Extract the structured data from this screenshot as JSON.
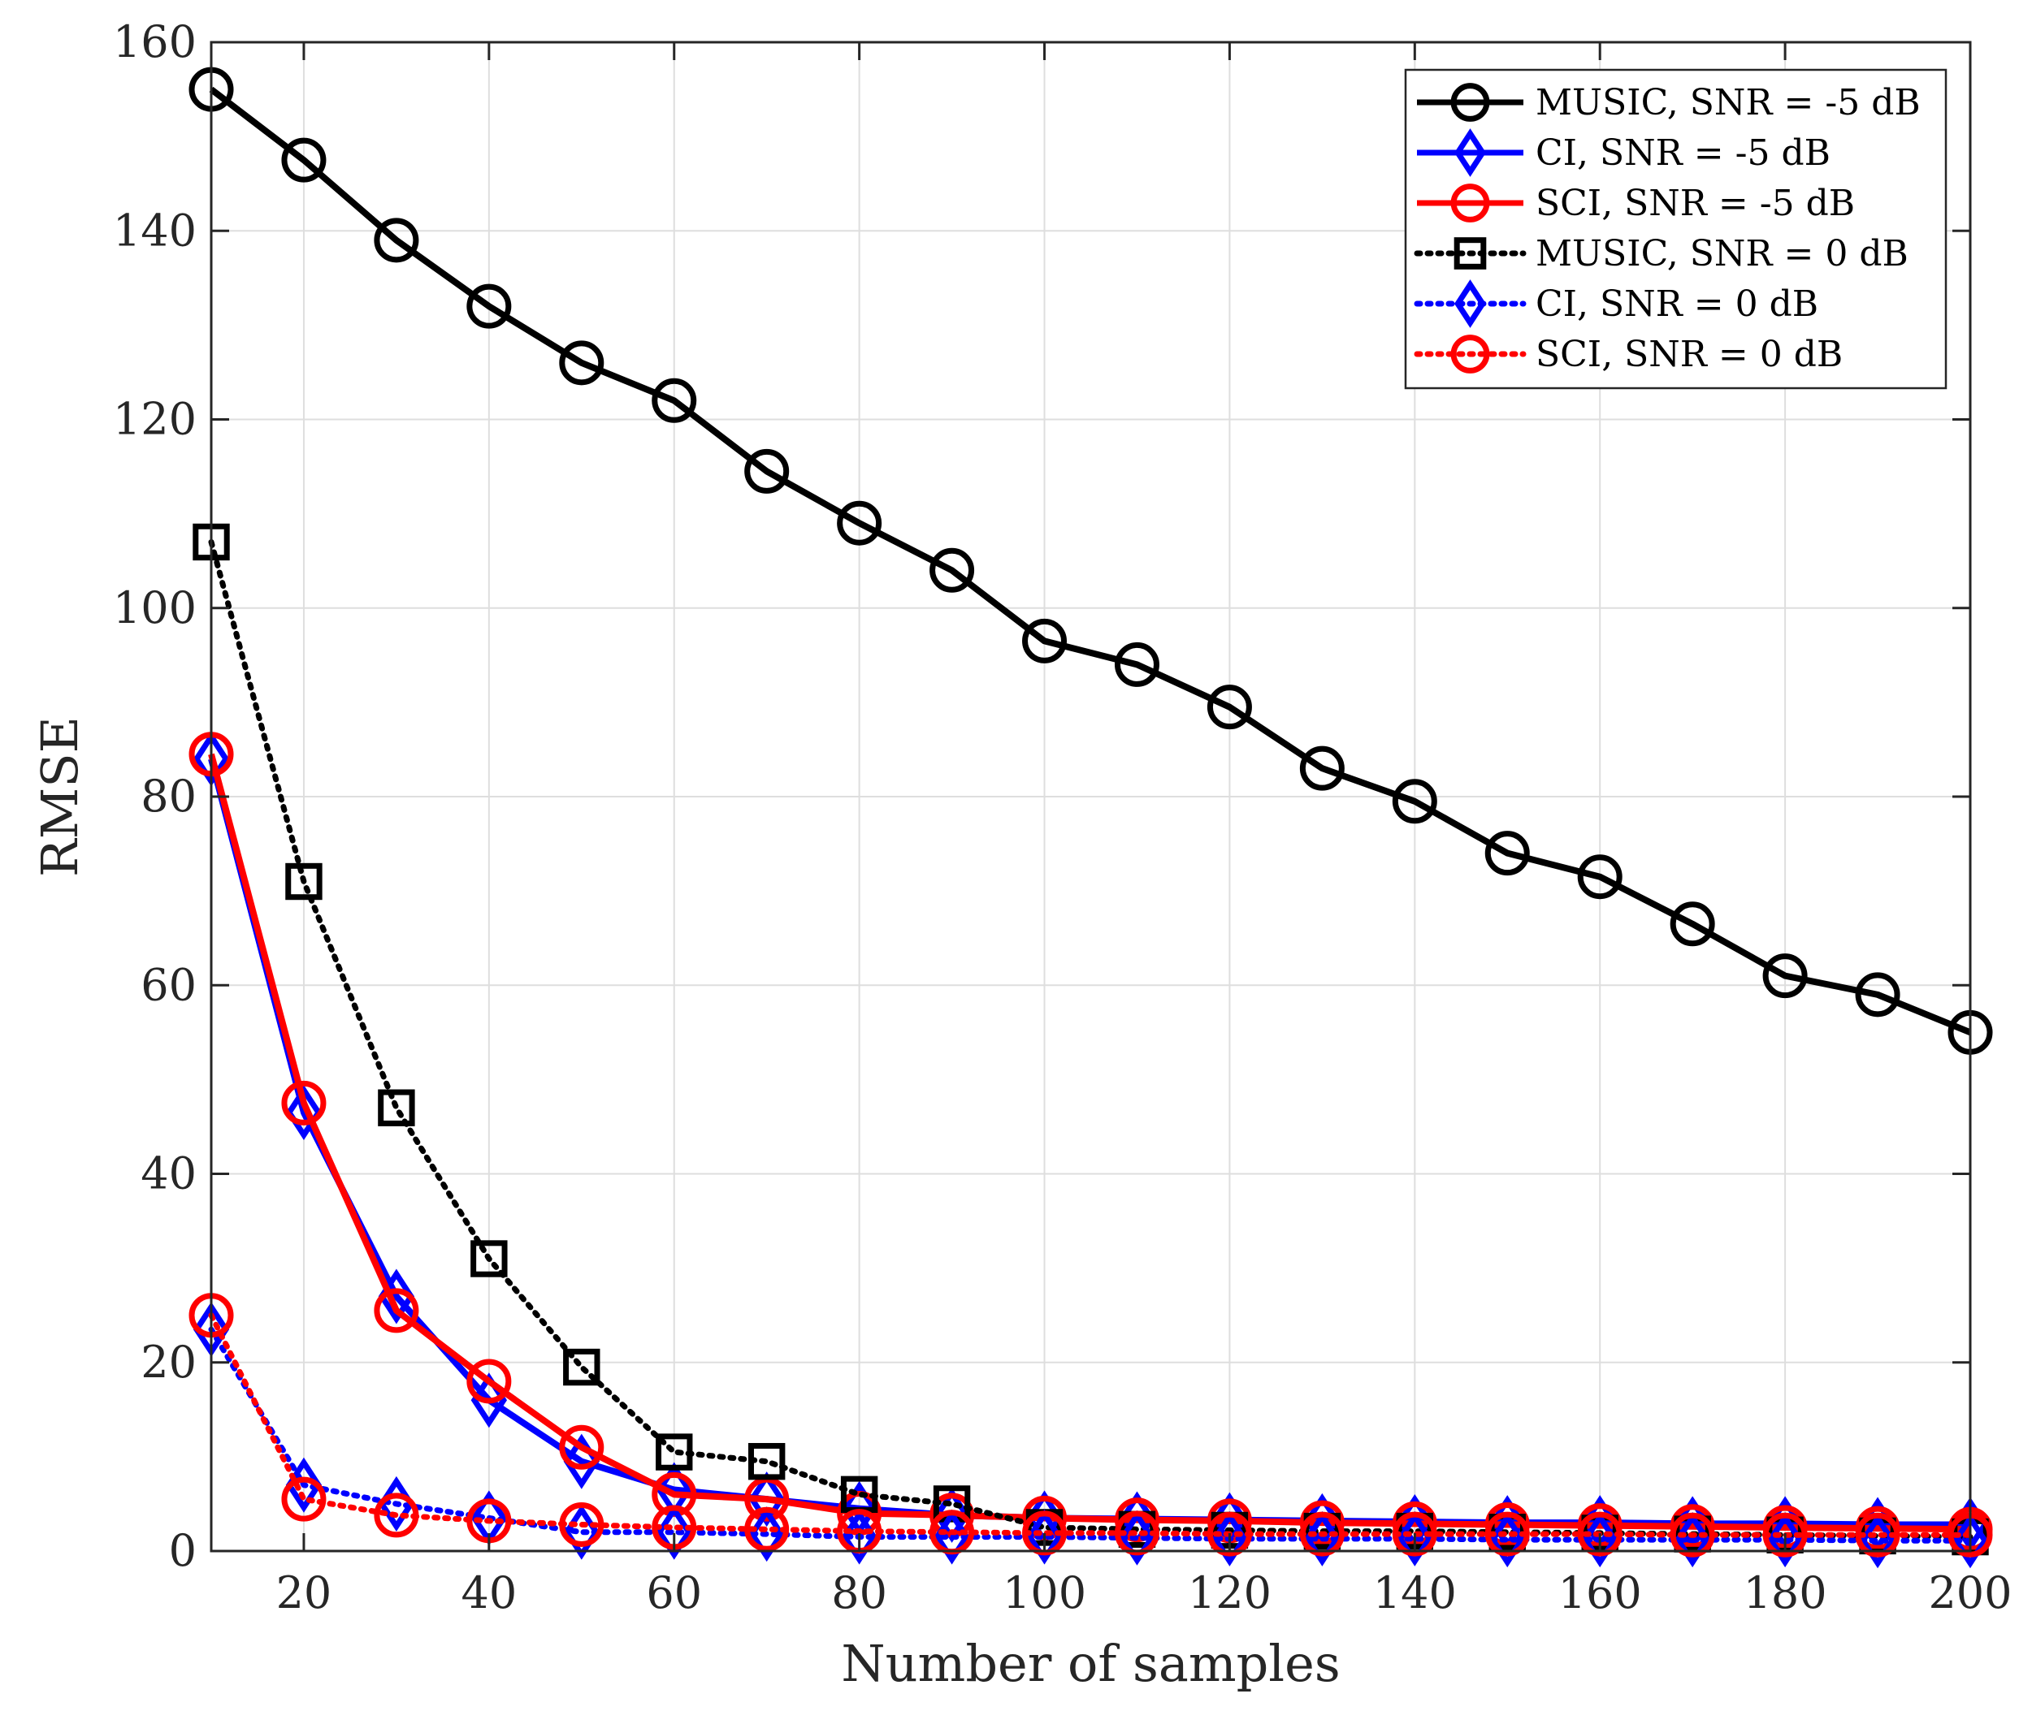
{
  "chart_data": {
    "type": "line",
    "title": "",
    "xlabel": "Number of samples",
    "ylabel": "RMSE",
    "xlim": [
      10,
      200
    ],
    "ylim": [
      0,
      160
    ],
    "xticks": [
      20,
      40,
      60,
      80,
      100,
      120,
      140,
      160,
      180,
      200
    ],
    "yticks": [
      0,
      20,
      40,
      60,
      80,
      100,
      120,
      140,
      160
    ],
    "grid": true,
    "legend_position": "top-right",
    "x": [
      10,
      20,
      30,
      40,
      50,
      60,
      70,
      80,
      90,
      100,
      110,
      120,
      130,
      140,
      150,
      160,
      170,
      180,
      190,
      200
    ],
    "series": [
      {
        "name": "MUSIC, SNR = -5 dB",
        "color": "#000000",
        "line": "solid",
        "marker": "circle",
        "values": [
          155,
          147.5,
          139,
          132,
          126,
          122,
          114.5,
          109,
          104,
          96.5,
          94,
          89.5,
          83,
          79.5,
          74,
          71.5,
          66.5,
          61,
          59,
          55
        ]
      },
      {
        "name": "CI, SNR = -5 dB",
        "color": "#0000ff",
        "line": "solid",
        "marker": "diamond",
        "values": [
          84,
          46.5,
          27,
          16,
          9.5,
          6.5,
          5.5,
          4.5,
          3.8,
          3.5,
          3.4,
          3.3,
          3.2,
          3.1,
          3,
          3,
          2.9,
          2.9,
          2.8,
          2.8
        ]
      },
      {
        "name": "SCI, SNR = -5 dB",
        "color": "#ff0000",
        "line": "solid",
        "marker": "circle",
        "values": [
          84.5,
          47.5,
          25.5,
          18,
          11,
          6,
          5.5,
          4,
          3.8,
          3.5,
          3.3,
          3.2,
          3,
          2.9,
          2.8,
          2.7,
          2.6,
          2.5,
          2.4,
          2.3
        ]
      },
      {
        "name": "MUSIC, SNR = 0 dB",
        "color": "#000000",
        "line": "dotted",
        "marker": "square",
        "values": [
          107,
          71,
          47,
          31,
          19.5,
          10.5,
          9.5,
          6,
          5,
          2.5,
          2.3,
          2.2,
          2.1,
          2.1,
          2,
          1.9,
          1.8,
          1.7,
          1.6,
          1.5
        ]
      },
      {
        "name": "CI, SNR = 0 dB",
        "color": "#0000ff",
        "line": "dotted",
        "marker": "diamond",
        "values": [
          23.5,
          7,
          5,
          3.5,
          2,
          2,
          1.8,
          1.5,
          1.5,
          1.5,
          1.4,
          1.3,
          1.3,
          1.3,
          1.2,
          1.2,
          1.2,
          1.2,
          1.1,
          1.1
        ]
      },
      {
        "name": "SCI, SNR = 0 dB",
        "color": "#ff0000",
        "line": "dotted",
        "marker": "circle",
        "values": [
          25,
          5.5,
          3.8,
          3.2,
          2.8,
          2.5,
          2.3,
          2.1,
          2,
          1.9,
          1.9,
          1.8,
          1.8,
          1.8,
          1.8,
          1.8,
          1.7,
          1.7,
          1.7,
          1.7
        ]
      }
    ]
  }
}
